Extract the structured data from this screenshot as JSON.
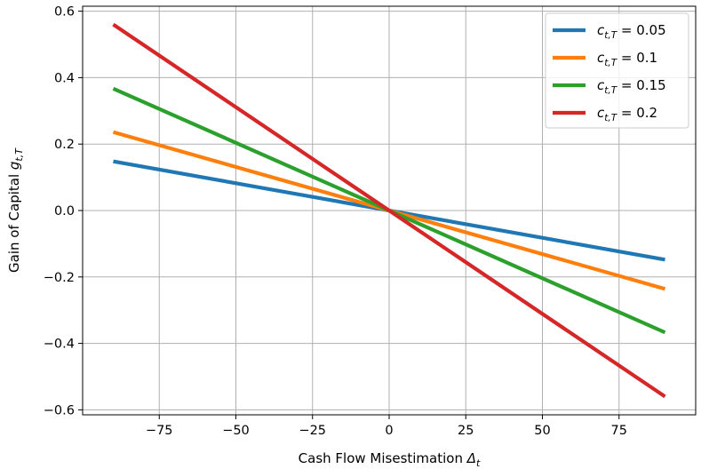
{
  "chart_data": {
    "type": "line",
    "title": "",
    "xlabel": {
      "main": "Cash Flow Misestimation ",
      "sym": "Δ",
      "sub": "t"
    },
    "ylabel": {
      "main": "Gain of Capital ",
      "sym": "g",
      "sub": "t,T"
    },
    "xlim": [
      -100,
      100
    ],
    "ylim": [
      -0.615,
      0.615
    ],
    "xticks": [
      -75,
      -50,
      -25,
      0,
      25,
      50,
      75
    ],
    "xtick_labels": [
      "−75",
      "−50",
      "−25",
      "0",
      "25",
      "50",
      "75"
    ],
    "yticks": [
      -0.6,
      -0.4,
      -0.2,
      0.0,
      0.2,
      0.4,
      0.6
    ],
    "ytick_labels": [
      "−0.6",
      "−0.4",
      "−0.2",
      "0.0",
      "0.2",
      "0.4",
      "0.6"
    ],
    "grid": true,
    "legend_position": "top-right",
    "x": [
      -90,
      90
    ],
    "series": [
      {
        "name": "0.05",
        "label_sym": "c",
        "label_sub": "t,T",
        "color": "#1f77b4",
        "y": [
          0.148,
          -0.148
        ]
      },
      {
        "name": "0.1",
        "label_sym": "c",
        "label_sub": "t,T",
        "color": "#ff7f0e",
        "y": [
          0.236,
          -0.236
        ]
      },
      {
        "name": "0.15",
        "label_sym": "c",
        "label_sub": "t,T",
        "color": "#2ca02c",
        "y": [
          0.367,
          -0.367
        ]
      },
      {
        "name": "0.2",
        "label_sym": "c",
        "label_sub": "t,T",
        "color": "#d62728",
        "y": [
          0.56,
          -0.56
        ]
      }
    ]
  }
}
